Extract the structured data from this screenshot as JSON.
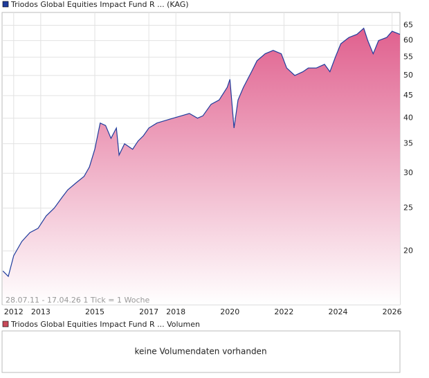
{
  "chart_data": {
    "type": "line",
    "legend": "Triodos Global Equities Impact Fund R ... (KAG)",
    "annotation": "28.07.11 - 17.04.26   1 Tick = 1 Woche",
    "x": [
      2011.6,
      2011.8,
      2012.0,
      2012.3,
      2012.6,
      2012.9,
      2013.2,
      2013.5,
      2013.8,
      2014.0,
      2014.3,
      2014.6,
      2014.8,
      2015.0,
      2015.2,
      2015.4,
      2015.6,
      2015.8,
      2015.9,
      2016.1,
      2016.4,
      2016.6,
      2016.8,
      2017.0,
      2017.3,
      2017.6,
      2017.9,
      2018.2,
      2018.5,
      2018.8,
      2019.0,
      2019.3,
      2019.6,
      2019.9,
      2020.0,
      2020.15,
      2020.3,
      2020.5,
      2020.8,
      2021.0,
      2021.3,
      2021.6,
      2021.9,
      2022.1,
      2022.4,
      2022.7,
      2022.9,
      2023.2,
      2023.5,
      2023.7,
      2023.9,
      2024.1,
      2024.4,
      2024.7,
      2024.95,
      2025.1,
      2025.3,
      2025.5,
      2025.8,
      2026.0,
      2026.29
    ],
    "series": [
      {
        "name": "Triodos Global Equities Impact Fund R ... (KAG)",
        "color": "#1f3c9c",
        "values": [
          18,
          17.5,
          19.5,
          21,
          22,
          22.5,
          24,
          25,
          26.5,
          27.5,
          28.5,
          29.5,
          31,
          34,
          39,
          38.5,
          36,
          38,
          33,
          35,
          34,
          35.5,
          36.5,
          38,
          39,
          39.5,
          40,
          40.5,
          41,
          40,
          40.5,
          43,
          44,
          47,
          49,
          38,
          44,
          47,
          51,
          54,
          56,
          57,
          56,
          52,
          50,
          51,
          52,
          52,
          53,
          51,
          55,
          59,
          61,
          62,
          64,
          60,
          56,
          60,
          61,
          63,
          62
        ]
      }
    ],
    "xlim": [
      2011.57,
      2026.29
    ],
    "xticks": [
      2012,
      2013,
      2015,
      2017,
      2018,
      2020,
      2022,
      2024,
      2026
    ],
    "ylim": [
      15.1,
      69.5
    ],
    "yticks": [
      20,
      25,
      30,
      35,
      40,
      45,
      50,
      55,
      60,
      65
    ],
    "log_scale": true,
    "grid": true,
    "fill_color": "#e0608e",
    "volume": {
      "legend": "Triodos Global Equities Impact Fund R ... Volumen",
      "message": "keine Volumendaten vorhanden",
      "color": "#c84a5a"
    }
  }
}
